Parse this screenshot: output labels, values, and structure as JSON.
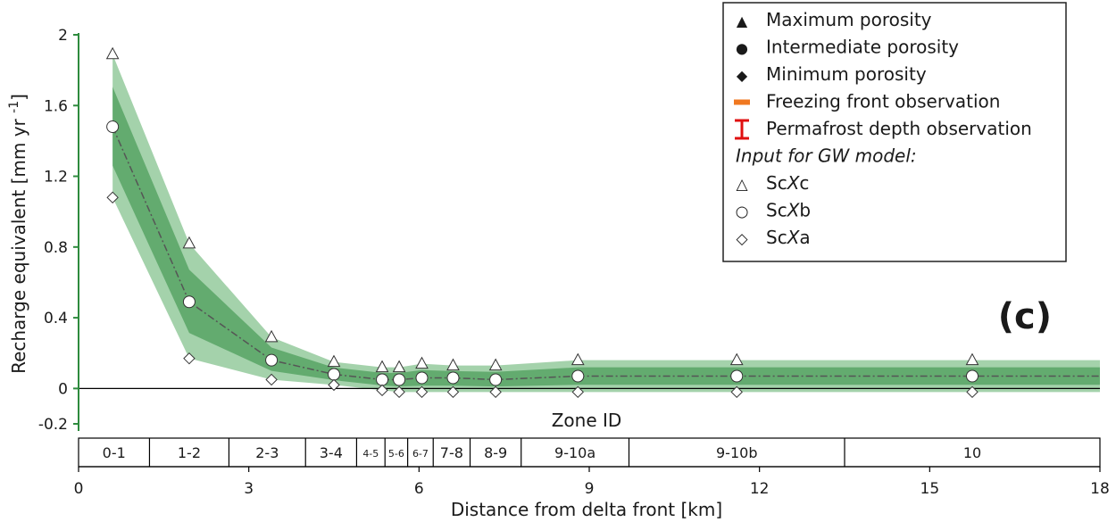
{
  "chart_data": {
    "type": "line",
    "panel_label": "(c)",
    "xlabel": "Distance from delta front [km]",
    "ylabel": "Recharge equivalent [mm yr ",
    "ylabel_sup": "-1",
    "ylabel_close": "]",
    "xlim": [
      0,
      18
    ],
    "ylim": [
      -0.25,
      2.0
    ],
    "xticks": [
      0,
      3,
      6,
      9,
      12,
      15,
      18
    ],
    "xtick_labels": [
      "0",
      "3",
      "6",
      "9",
      "12",
      "15",
      "18"
    ],
    "yticks": [
      2,
      1.6,
      1.2,
      0.8,
      0.4,
      0,
      -0.2
    ],
    "ytick_labels": [
      "2",
      "1.6",
      "1.2",
      "0.8",
      "0.4",
      "0",
      "-0.2"
    ],
    "zone_axis_title": "Zone ID",
    "zones": [
      {
        "label": "0-1",
        "start": 0,
        "end": 1.25
      },
      {
        "label": "1-2",
        "start": 1.25,
        "end": 2.65
      },
      {
        "label": "2-3",
        "start": 2.65,
        "end": 4.0
      },
      {
        "label": "3-4",
        "start": 4.0,
        "end": 4.9
      },
      {
        "label": "4-5",
        "start": 4.9,
        "end": 5.4
      },
      {
        "label": "5-6",
        "start": 5.4,
        "end": 5.8
      },
      {
        "label": "6-7",
        "start": 5.8,
        "end": 6.25
      },
      {
        "label": "7-8",
        "start": 6.25,
        "end": 6.9
      },
      {
        "label": "8-9",
        "start": 6.9,
        "end": 7.8
      },
      {
        "label": "9-10a",
        "start": 7.8,
        "end": 9.7
      },
      {
        "label": "9-10b",
        "start": 9.7,
        "end": 13.5
      },
      {
        "label": "10",
        "start": 13.5,
        "end": 18
      }
    ],
    "x": [
      0.6,
      1.95,
      3.4,
      4.5,
      5.35,
      5.65,
      6.05,
      6.6,
      7.35,
      8.8,
      11.6,
      15.75
    ],
    "series": [
      {
        "name": "ScXc",
        "marker": "triangle-open",
        "values": [
          1.89,
          0.82,
          0.29,
          0.15,
          0.12,
          0.12,
          0.14,
          0.13,
          0.13,
          0.16,
          0.16,
          0.16
        ]
      },
      {
        "name": "ScXb",
        "marker": "circle-open",
        "values": [
          1.48,
          0.49,
          0.16,
          0.08,
          0.05,
          0.05,
          0.06,
          0.06,
          0.05,
          0.07,
          0.07,
          0.07
        ]
      },
      {
        "name": "ScXa",
        "marker": "diamond-open",
        "values": [
          1.08,
          0.17,
          0.05,
          0.02,
          -0.01,
          -0.02,
          -0.02,
          -0.02,
          -0.02,
          -0.02,
          -0.02,
          -0.02
        ]
      }
    ],
    "band_color": "#2e8b3e",
    "center_line_color": "#555555",
    "axis_color": "#2e8b3e",
    "legend": {
      "location": "top-right",
      "entries": [
        {
          "symbol": "▲",
          "label": "Maximum porosity"
        },
        {
          "symbol": "●",
          "label": "Intermediate porosity"
        },
        {
          "symbol": "◆",
          "label": "Minimum porosity"
        },
        {
          "symbol": "bar-orange",
          "label": "Freezing front observation",
          "color": "#f07820"
        },
        {
          "symbol": "errorbar-red",
          "label": "Permafrost depth observation",
          "color": "#e01010"
        }
      ],
      "subheading": "Input for GW model:",
      "model_entries": [
        {
          "symbol": "△",
          "prefix": "Sc",
          "italic": "X",
          "suffix": "c"
        },
        {
          "symbol": "○",
          "prefix": "Sc",
          "italic": "X",
          "suffix": "b"
        },
        {
          "symbol": "◇",
          "prefix": "Sc",
          "italic": "X",
          "suffix": "a"
        }
      ]
    }
  }
}
